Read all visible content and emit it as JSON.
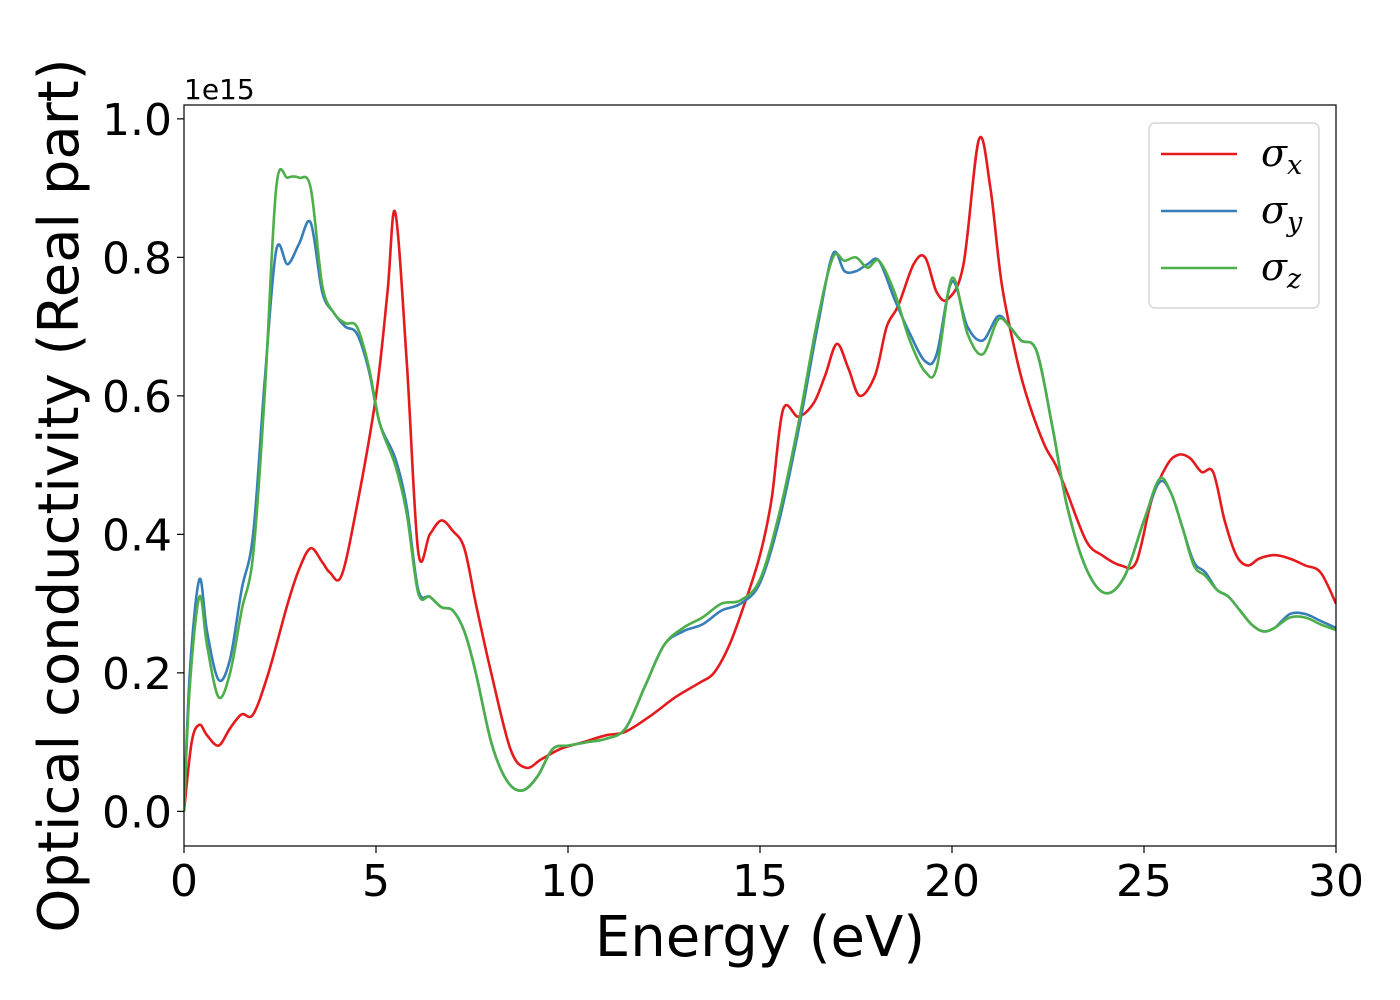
{
  "chart_data": {
    "type": "line",
    "xlabel": "Energy (eV)",
    "ylabel": "Optical conductivity (Real part)",
    "y_offset_label": "1e15",
    "xlim": [
      0,
      30
    ],
    "ylim": [
      -0.05,
      1.02
    ],
    "x_ticks": [
      0,
      5,
      10,
      15,
      20,
      25,
      30
    ],
    "y_ticks": [
      0.0,
      0.2,
      0.4,
      0.6,
      0.8,
      1.0
    ],
    "x_tick_labels": [
      "0",
      "5",
      "10",
      "15",
      "20",
      "25",
      "30"
    ],
    "y_tick_labels": [
      "0.0",
      "0.2",
      "0.4",
      "0.6",
      "0.8",
      "1.0"
    ],
    "grid": false,
    "legend_position": "top-right",
    "series": [
      {
        "name": "σx",
        "label_base": "σ",
        "label_sub": "x",
        "color": "#e41a1c",
        "x": [
          0,
          0.2,
          0.4,
          0.6,
          0.9,
          1.2,
          1.5,
          1.8,
          2.2,
          2.7,
          3.0,
          3.3,
          3.6,
          3.8,
          4.1,
          4.5,
          5.0,
          5.3,
          5.5,
          5.8,
          6.1,
          6.4,
          6.7,
          7.0,
          7.3,
          7.6,
          8.0,
          8.5,
          8.9,
          9.3,
          9.8,
          10.4,
          11.0,
          11.5,
          12.2,
          12.8,
          13.4,
          13.8,
          14.2,
          14.6,
          15.0,
          15.3,
          15.6,
          16.0,
          16.4,
          16.7,
          17.0,
          17.3,
          17.6,
          18.0,
          18.3,
          18.6,
          19.0,
          19.3,
          19.6,
          19.9,
          20.3,
          20.7,
          21.0,
          21.3,
          21.7,
          22.0,
          22.4,
          22.7,
          23.0,
          23.5,
          23.9,
          24.4,
          24.8,
          25.2,
          25.6,
          25.9,
          26.2,
          26.5,
          26.8,
          27.1,
          27.4,
          27.7,
          28.0,
          28.4,
          28.8,
          29.2,
          29.6,
          30.0
        ],
        "values": [
          0.0,
          0.1,
          0.125,
          0.11,
          0.095,
          0.12,
          0.14,
          0.14,
          0.2,
          0.3,
          0.35,
          0.38,
          0.36,
          0.345,
          0.34,
          0.44,
          0.6,
          0.75,
          0.865,
          0.65,
          0.375,
          0.4,
          0.42,
          0.405,
          0.38,
          0.3,
          0.2,
          0.09,
          0.063,
          0.075,
          0.09,
          0.1,
          0.11,
          0.115,
          0.14,
          0.165,
          0.185,
          0.2,
          0.24,
          0.3,
          0.37,
          0.45,
          0.58,
          0.57,
          0.59,
          0.63,
          0.675,
          0.64,
          0.6,
          0.63,
          0.7,
          0.73,
          0.79,
          0.8,
          0.75,
          0.74,
          0.79,
          0.97,
          0.9,
          0.76,
          0.65,
          0.59,
          0.53,
          0.5,
          0.46,
          0.39,
          0.37,
          0.355,
          0.36,
          0.45,
          0.5,
          0.515,
          0.51,
          0.49,
          0.49,
          0.42,
          0.37,
          0.355,
          0.365,
          0.37,
          0.365,
          0.355,
          0.345,
          0.3
        ]
      },
      {
        "name": "σy",
        "label_base": "σ",
        "label_sub": "y",
        "color": "#377eb8",
        "x": [
          0,
          0.15,
          0.4,
          0.6,
          0.9,
          1.2,
          1.5,
          1.8,
          2.1,
          2.4,
          2.7,
          3.0,
          3.3,
          3.6,
          3.9,
          4.2,
          4.5,
          4.8,
          5.1,
          5.5,
          5.8,
          6.1,
          6.4,
          6.7,
          7.0,
          7.3,
          7.6,
          8.0,
          8.4,
          8.8,
          9.2,
          9.6,
          10.0,
          10.5,
          11.0,
          11.5,
          12.0,
          12.5,
          13.0,
          13.5,
          14.0,
          14.5,
          15.0,
          15.5,
          16.0,
          16.5,
          16.9,
          17.2,
          17.5,
          17.8,
          18.1,
          18.5,
          18.9,
          19.3,
          19.6,
          20.0,
          20.4,
          20.8,
          21.2,
          21.5,
          21.8,
          22.2,
          22.6,
          23.0,
          23.5,
          24.0,
          24.5,
          25.0,
          25.4,
          25.7,
          26.0,
          26.3,
          26.6,
          26.9,
          27.2,
          27.5,
          27.8,
          28.1,
          28.4,
          28.8,
          29.2,
          29.6,
          30.0
        ],
        "values": [
          0.0,
          0.2,
          0.335,
          0.26,
          0.19,
          0.22,
          0.32,
          0.4,
          0.62,
          0.81,
          0.79,
          0.82,
          0.85,
          0.75,
          0.72,
          0.7,
          0.69,
          0.64,
          0.56,
          0.51,
          0.44,
          0.32,
          0.31,
          0.295,
          0.29,
          0.26,
          0.2,
          0.1,
          0.045,
          0.03,
          0.05,
          0.09,
          0.095,
          0.1,
          0.105,
          0.12,
          0.18,
          0.24,
          0.26,
          0.27,
          0.29,
          0.3,
          0.33,
          0.42,
          0.55,
          0.7,
          0.805,
          0.78,
          0.78,
          0.79,
          0.795,
          0.74,
          0.69,
          0.65,
          0.66,
          0.765,
          0.7,
          0.68,
          0.715,
          0.7,
          0.68,
          0.665,
          0.56,
          0.44,
          0.35,
          0.315,
          0.34,
          0.42,
          0.475,
          0.46,
          0.41,
          0.36,
          0.345,
          0.32,
          0.31,
          0.29,
          0.27,
          0.26,
          0.265,
          0.285,
          0.285,
          0.275,
          0.265
        ]
      },
      {
        "name": "σz",
        "label_base": "σ",
        "label_sub": "z",
        "color": "#4daf4a",
        "x": [
          0,
          0.15,
          0.4,
          0.6,
          0.9,
          1.2,
          1.5,
          1.8,
          2.1,
          2.4,
          2.7,
          3.0,
          3.3,
          3.6,
          3.9,
          4.2,
          4.5,
          4.8,
          5.1,
          5.5,
          5.8,
          6.1,
          6.4,
          6.7,
          7.0,
          7.3,
          7.6,
          8.0,
          8.4,
          8.8,
          9.2,
          9.6,
          10.0,
          10.5,
          11.0,
          11.5,
          12.0,
          12.5,
          13.0,
          13.5,
          14.0,
          14.5,
          15.0,
          15.5,
          16.0,
          16.5,
          16.9,
          17.2,
          17.5,
          17.8,
          18.1,
          18.5,
          18.9,
          19.3,
          19.6,
          20.0,
          20.4,
          20.8,
          21.2,
          21.5,
          21.8,
          22.2,
          22.6,
          23.0,
          23.5,
          24.0,
          24.5,
          25.0,
          25.4,
          25.7,
          26.0,
          26.3,
          26.6,
          26.9,
          27.2,
          27.5,
          27.8,
          28.1,
          28.4,
          28.8,
          29.2,
          29.6,
          30.0
        ],
        "values": [
          0.0,
          0.18,
          0.31,
          0.24,
          0.165,
          0.2,
          0.29,
          0.37,
          0.6,
          0.9,
          0.915,
          0.915,
          0.9,
          0.76,
          0.72,
          0.705,
          0.7,
          0.645,
          0.56,
          0.5,
          0.43,
          0.315,
          0.31,
          0.295,
          0.29,
          0.26,
          0.2,
          0.1,
          0.045,
          0.03,
          0.05,
          0.09,
          0.095,
          0.1,
          0.105,
          0.12,
          0.18,
          0.24,
          0.265,
          0.28,
          0.3,
          0.305,
          0.335,
          0.43,
          0.56,
          0.71,
          0.8,
          0.795,
          0.8,
          0.785,
          0.795,
          0.75,
          0.68,
          0.635,
          0.64,
          0.77,
          0.69,
          0.66,
          0.71,
          0.7,
          0.68,
          0.665,
          0.56,
          0.44,
          0.35,
          0.315,
          0.34,
          0.42,
          0.48,
          0.46,
          0.41,
          0.355,
          0.34,
          0.32,
          0.31,
          0.29,
          0.27,
          0.26,
          0.265,
          0.28,
          0.28,
          0.27,
          0.262
        ]
      }
    ]
  }
}
